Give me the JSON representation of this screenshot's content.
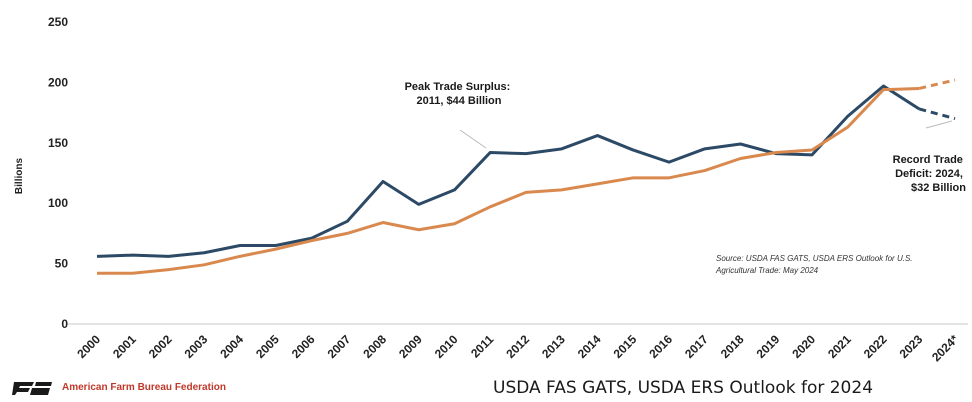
{
  "chart_data": {
    "type": "line",
    "title": "",
    "ylabel": "Billions",
    "xlabel": "",
    "ylim": [
      0,
      250
    ],
    "yticks": [
      0,
      50,
      100,
      150,
      200,
      250
    ],
    "categories": [
      "2000",
      "2001",
      "2002",
      "2003",
      "2004",
      "2005",
      "2006",
      "2007",
      "2008",
      "2009",
      "2010",
      "2011",
      "2012",
      "2013",
      "2014",
      "2015",
      "2016",
      "2017",
      "2018",
      "2019",
      "2020",
      "2021",
      "2022",
      "2023",
      "2024*"
    ],
    "series": [
      {
        "color": "#2c4a66",
        "values": [
          56,
          57,
          56,
          59,
          65,
          65,
          71,
          85,
          118,
          99,
          111,
          142,
          141,
          145,
          156,
          144,
          134,
          145,
          149,
          141,
          140,
          172,
          197,
          178,
          170
        ],
        "projected_from_index": 23
      },
      {
        "color": "#d9894e",
        "values": [
          42,
          42,
          45,
          49,
          56,
          62,
          69,
          75,
          84,
          78,
          83,
          97,
          109,
          111,
          116,
          121,
          121,
          127,
          137,
          142,
          144,
          163,
          194,
          195,
          202
        ],
        "projected_from_index": 23
      }
    ],
    "annotations": [
      {
        "lines": [
          "Peak Trade Surplus:",
          "2011, $44 Billion"
        ]
      },
      {
        "lines": [
          "Record Trade",
          "Deficit: 2024,",
          "$32 Billion"
        ]
      }
    ],
    "source_note": [
      "Source: USDA FAS GATS, USDA ERS Outlook for U.S.",
      "Agricultural Trade: May 2024"
    ],
    "grid": false,
    "legend": "none"
  },
  "footer": {
    "org": "American Farm Bureau Federation",
    "caption": "USDA FAS GATS, USDA ERS Outlook for 2024"
  },
  "logo_icon": "afbf-logo-icon"
}
